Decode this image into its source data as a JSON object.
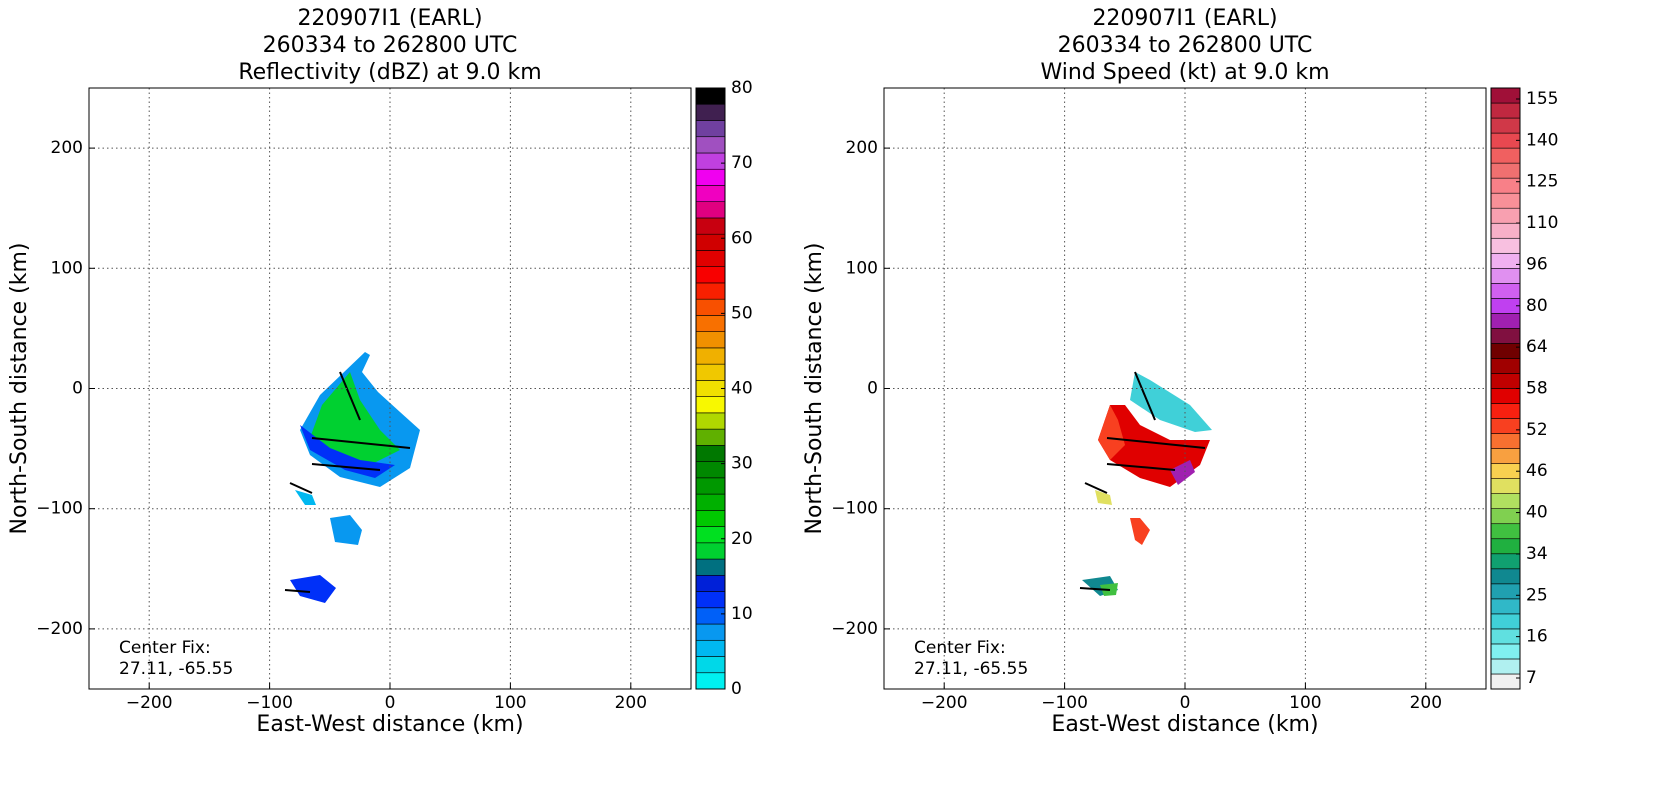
{
  "chart_data": [
    {
      "type": "heatmap",
      "title": [
        "220907I1 (EARL)",
        "260334 to 262800 UTC",
        "Reflectivity (dBZ) at 9.0 km"
      ],
      "xlabel": "East-West distance (km)",
      "ylabel": "North-South distance (km)",
      "xlim": [
        -250,
        250
      ],
      "ylim": [
        -250,
        250
      ],
      "xticks": [
        {
          "value": -200,
          "label": "−200"
        },
        {
          "value": -100,
          "label": "−100"
        },
        0,
        100,
        200
      ],
      "yticks": [
        {
          "value": -200,
          "label": "−200"
        },
        {
          "value": -100,
          "label": "−100"
        },
        0,
        100,
        200
      ],
      "grid": true,
      "annotation": [
        "Center Fix:",
        "27.11, -65.55"
      ],
      "colorbar": {
        "lim": [
          0,
          80
        ],
        "ticks": [
          0,
          10,
          20,
          30,
          40,
          50,
          60,
          70,
          80
        ],
        "colors": [
          "#00f0f0",
          "#00d8e8",
          "#00b8f0",
          "#0898f0",
          "#0060f8",
          "#0030f8",
          "#0020d8",
          "#007080",
          "#00d030",
          "#00e020",
          "#00c800",
          "#00b000",
          "#009800",
          "#008800",
          "#007800",
          "#60b000",
          "#b0d800",
          "#f8f800",
          "#f0e000",
          "#f0c800",
          "#f0b000",
          "#f09000",
          "#f87000",
          "#f85000",
          "#f82000",
          "#f80000",
          "#e00000",
          "#d00000",
          "#c80010",
          "#e00080",
          "#f000c0",
          "#f000f0",
          "#c040e0",
          "#a050c0",
          "#7040a0",
          "#402050",
          "#000000"
        ]
      }
    },
    {
      "type": "heatmap",
      "title": [
        "220907I1 (EARL)",
        "260334 to 262800 UTC",
        "Wind Speed (kt) at 9.0 km"
      ],
      "xlabel": "East-West distance (km)",
      "ylabel": "North-South distance (km)",
      "xlim": [
        -250,
        250
      ],
      "ylim": [
        -250,
        250
      ],
      "xticks": [
        {
          "value": -200,
          "label": "−200"
        },
        {
          "value": -100,
          "label": "−100"
        },
        0,
        100,
        200
      ],
      "yticks": [
        {
          "value": -200,
          "label": "−200"
        },
        {
          "value": -100,
          "label": "−100"
        },
        0,
        100,
        200
      ],
      "grid": true,
      "annotation": [
        "Center Fix:",
        "27.11, -65.55"
      ],
      "colorbar": {
        "ticks": [
          7,
          16,
          25,
          34,
          40,
          46,
          52,
          58,
          64,
          80,
          96,
          110,
          125,
          140,
          155
        ],
        "colors": [
          "#f0f0f0",
          "#b0f0f0",
          "#80f0f0",
          "#60e0e0",
          "#40d0d8",
          "#30b8c8",
          "#20a0b0",
          "#108890",
          "#10a070",
          "#20b040",
          "#40c040",
          "#80d050",
          "#b0e060",
          "#e0e060",
          "#f8d050",
          "#f8a040",
          "#f87030",
          "#f84020",
          "#f82010",
          "#e00000",
          "#c00000",
          "#a00000",
          "#700000",
          "#801040",
          "#a020b0",
          "#c040f0",
          "#d060f0",
          "#e090f0",
          "#f0b0f0",
          "#f8c0e0",
          "#f8b0c8",
          "#f8a0b0",
          "#f89098",
          "#f88088",
          "#f07070",
          "#f06060",
          "#e84850",
          "#d03848",
          "#c02840",
          "#a01038"
        ]
      }
    }
  ]
}
